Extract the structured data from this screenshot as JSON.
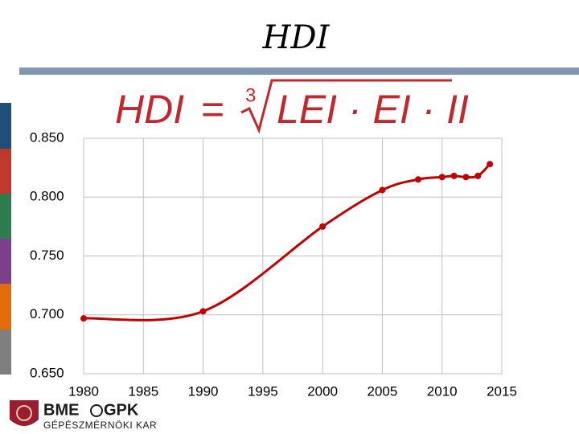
{
  "title": "HDI",
  "formula": {
    "lhs": "HDI",
    "equals": "=",
    "index": "3",
    "radicand": "LEI · EI · II"
  },
  "logo": {
    "name_left": "BME",
    "name_right": "GPK",
    "subtitle": "GÉPÉSZMÉRNÖKI KAR"
  },
  "chart_data": {
    "type": "line",
    "x": [
      1980,
      1990,
      2000,
      2005,
      2008,
      2010,
      2011,
      2012,
      2013,
      2014
    ],
    "series": [
      {
        "name": "HDI",
        "color": "#c00000",
        "values": [
          0.697,
          0.703,
          0.775,
          0.806,
          0.815,
          0.817,
          0.818,
          0.817,
          0.818,
          0.828
        ]
      }
    ],
    "xlim": [
      1980,
      2015
    ],
    "xticks": [
      1980,
      1985,
      1990,
      1995,
      2000,
      2005,
      2010,
      2015
    ],
    "ylim": [
      0.65,
      0.85
    ],
    "yticks": [
      {
        "value": 0.65,
        "label": "0.650"
      },
      {
        "value": 0.7,
        "label": "0.700"
      },
      {
        "value": 0.75,
        "label": "0.750"
      },
      {
        "value": 0.8,
        "label": "0.800"
      },
      {
        "value": 0.85,
        "label": "0.850"
      }
    ],
    "grid": true
  }
}
